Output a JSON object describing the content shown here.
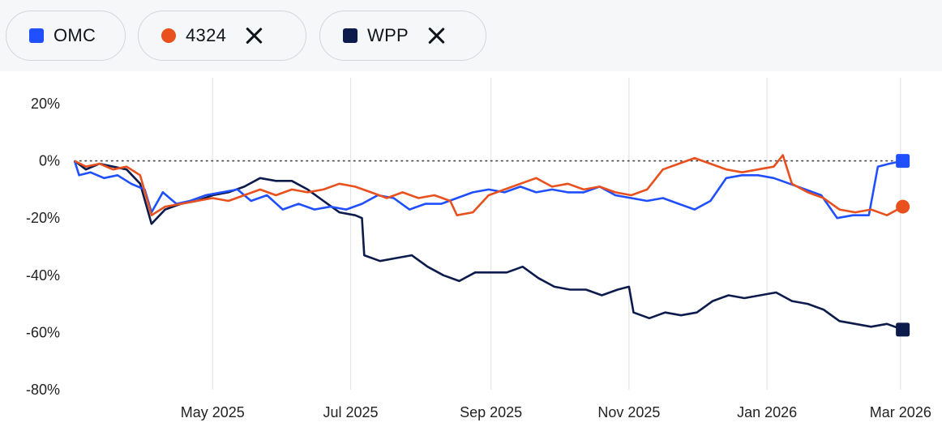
{
  "legend": {
    "items": [
      {
        "label": "OMC",
        "color": "#1f4fff",
        "marker": "square",
        "removable": false
      },
      {
        "label": "4324",
        "color": "#e8501e",
        "marker": "circle",
        "removable": true
      },
      {
        "label": "WPP",
        "color": "#0d1b4c",
        "marker": "square",
        "removable": true
      }
    ]
  },
  "chart_data": {
    "type": "line",
    "title": "",
    "xlabel": "",
    "ylabel": "",
    "ylim": [
      -80,
      20
    ],
    "y_ticks": [
      "20%",
      "0%",
      "-20%",
      "-40%",
      "-60%",
      "-80%"
    ],
    "y_tick_values": [
      20,
      0,
      -20,
      -40,
      -60,
      -80
    ],
    "x_range": [
      "2025-03-01",
      "2026-03-05"
    ],
    "x_ticks": [
      {
        "label": "May 2025",
        "date": "2025-05-01"
      },
      {
        "label": "Jul 2025",
        "date": "2025-07-01"
      },
      {
        "label": "Sep 2025",
        "date": "2025-09-01"
      },
      {
        "label": "Nov 2025",
        "date": "2025-11-01"
      },
      {
        "label": "Jan 2026",
        "date": "2026-01-01"
      },
      {
        "label": "Mar 2026",
        "date": "2026-03-01"
      }
    ],
    "reference_line": 0,
    "series": [
      {
        "name": "OMC",
        "color": "#1f4fff",
        "points": [
          [
            "2025-03-01",
            0
          ],
          [
            "2025-03-03",
            -5
          ],
          [
            "2025-03-08",
            -4
          ],
          [
            "2025-03-14",
            -6
          ],
          [
            "2025-03-20",
            -5
          ],
          [
            "2025-03-26",
            -8
          ],
          [
            "2025-04-01",
            -10
          ],
          [
            "2025-04-04",
            -18
          ],
          [
            "2025-04-09",
            -11
          ],
          [
            "2025-04-15",
            -15
          ],
          [
            "2025-04-21",
            -14
          ],
          [
            "2025-04-28",
            -12
          ],
          [
            "2025-05-05",
            -11
          ],
          [
            "2025-05-12",
            -10
          ],
          [
            "2025-05-18",
            -14
          ],
          [
            "2025-05-25",
            -12
          ],
          [
            "2025-06-01",
            -17
          ],
          [
            "2025-06-08",
            -15
          ],
          [
            "2025-06-15",
            -17
          ],
          [
            "2025-06-22",
            -16
          ],
          [
            "2025-06-29",
            -17
          ],
          [
            "2025-07-06",
            -15
          ],
          [
            "2025-07-13",
            -12
          ],
          [
            "2025-07-20",
            -13
          ],
          [
            "2025-07-27",
            -17
          ],
          [
            "2025-08-03",
            -15
          ],
          [
            "2025-08-10",
            -15
          ],
          [
            "2025-08-17",
            -13
          ],
          [
            "2025-08-24",
            -11
          ],
          [
            "2025-08-31",
            -10
          ],
          [
            "2025-09-07",
            -11
          ],
          [
            "2025-09-14",
            -9
          ],
          [
            "2025-09-21",
            -11
          ],
          [
            "2025-09-28",
            -10
          ],
          [
            "2025-10-05",
            -11
          ],
          [
            "2025-10-12",
            -11
          ],
          [
            "2025-10-19",
            -9
          ],
          [
            "2025-10-26",
            -12
          ],
          [
            "2025-11-02",
            -13
          ],
          [
            "2025-11-09",
            -14
          ],
          [
            "2025-11-16",
            -13
          ],
          [
            "2025-11-23",
            -15
          ],
          [
            "2025-11-30",
            -17
          ],
          [
            "2025-12-07",
            -14
          ],
          [
            "2025-12-14",
            -6
          ],
          [
            "2025-12-21",
            -5
          ],
          [
            "2025-12-28",
            -5
          ],
          [
            "2026-01-04",
            -6
          ],
          [
            "2026-01-11",
            -8
          ],
          [
            "2026-01-18",
            -10
          ],
          [
            "2026-01-25",
            -12
          ],
          [
            "2026-02-01",
            -20
          ],
          [
            "2026-02-08",
            -19
          ],
          [
            "2026-02-15",
            -19
          ],
          [
            "2026-02-19",
            -2
          ],
          [
            "2026-02-24",
            -1
          ],
          [
            "2026-03-02",
            0
          ]
        ]
      },
      {
        "name": "4324",
        "color": "#e8501e",
        "points": [
          [
            "2025-03-01",
            0
          ],
          [
            "2025-03-06",
            -2
          ],
          [
            "2025-03-12",
            -1
          ],
          [
            "2025-03-18",
            -3
          ],
          [
            "2025-03-24",
            -2
          ],
          [
            "2025-03-30",
            -5
          ],
          [
            "2025-04-04",
            -19
          ],
          [
            "2025-04-10",
            -16
          ],
          [
            "2025-04-17",
            -15
          ],
          [
            "2025-04-24",
            -14
          ],
          [
            "2025-05-01",
            -13
          ],
          [
            "2025-05-08",
            -14
          ],
          [
            "2025-05-15",
            -12
          ],
          [
            "2025-05-22",
            -10
          ],
          [
            "2025-05-29",
            -12
          ],
          [
            "2025-06-05",
            -10
          ],
          [
            "2025-06-12",
            -11
          ],
          [
            "2025-06-19",
            -10
          ],
          [
            "2025-06-26",
            -8
          ],
          [
            "2025-07-03",
            -9
          ],
          [
            "2025-07-10",
            -11
          ],
          [
            "2025-07-17",
            -13
          ],
          [
            "2025-07-24",
            -11
          ],
          [
            "2025-07-31",
            -13
          ],
          [
            "2025-08-07",
            -12
          ],
          [
            "2025-08-14",
            -14
          ],
          [
            "2025-08-17",
            -19
          ],
          [
            "2025-08-24",
            -18
          ],
          [
            "2025-08-31",
            -12
          ],
          [
            "2025-09-07",
            -10
          ],
          [
            "2025-09-14",
            -8
          ],
          [
            "2025-09-21",
            -6
          ],
          [
            "2025-09-28",
            -9
          ],
          [
            "2025-10-05",
            -8
          ],
          [
            "2025-10-12",
            -10
          ],
          [
            "2025-10-19",
            -9
          ],
          [
            "2025-10-26",
            -11
          ],
          [
            "2025-11-02",
            -12
          ],
          [
            "2025-11-09",
            -10
          ],
          [
            "2025-11-16",
            -3
          ],
          [
            "2025-11-23",
            -1
          ],
          [
            "2025-11-30",
            1
          ],
          [
            "2025-12-07",
            -1
          ],
          [
            "2025-12-14",
            -3
          ],
          [
            "2025-12-21",
            -4
          ],
          [
            "2025-12-28",
            -3
          ],
          [
            "2026-01-04",
            -2
          ],
          [
            "2026-01-08",
            2
          ],
          [
            "2026-01-12",
            -8
          ],
          [
            "2026-01-19",
            -11
          ],
          [
            "2026-01-26",
            -13
          ],
          [
            "2026-02-02",
            -17
          ],
          [
            "2026-02-09",
            -18
          ],
          [
            "2026-02-16",
            -17
          ],
          [
            "2026-02-23",
            -19
          ],
          [
            "2026-03-02",
            -16
          ]
        ]
      },
      {
        "name": "WPP",
        "color": "#0d1b4c",
        "points": [
          [
            "2025-03-01",
            0
          ],
          [
            "2025-03-06",
            -3
          ],
          [
            "2025-03-12",
            -1
          ],
          [
            "2025-03-18",
            -2
          ],
          [
            "2025-03-24",
            -3
          ],
          [
            "2025-03-30",
            -8
          ],
          [
            "2025-04-04",
            -22
          ],
          [
            "2025-04-10",
            -17
          ],
          [
            "2025-04-17",
            -15
          ],
          [
            "2025-04-24",
            -14
          ],
          [
            "2025-05-01",
            -12
          ],
          [
            "2025-05-08",
            -11
          ],
          [
            "2025-05-15",
            -9
          ],
          [
            "2025-05-22",
            -6
          ],
          [
            "2025-05-29",
            -7
          ],
          [
            "2025-06-05",
            -7
          ],
          [
            "2025-06-12",
            -10
          ],
          [
            "2025-06-19",
            -14
          ],
          [
            "2025-06-26",
            -18
          ],
          [
            "2025-07-03",
            -19
          ],
          [
            "2025-07-06",
            -20
          ],
          [
            "2025-07-07",
            -33
          ],
          [
            "2025-07-14",
            -35
          ],
          [
            "2025-07-21",
            -34
          ],
          [
            "2025-07-28",
            -33
          ],
          [
            "2025-08-04",
            -37
          ],
          [
            "2025-08-11",
            -40
          ],
          [
            "2025-08-18",
            -42
          ],
          [
            "2025-08-25",
            -39
          ],
          [
            "2025-09-01",
            -39
          ],
          [
            "2025-09-08",
            -39
          ],
          [
            "2025-09-15",
            -37
          ],
          [
            "2025-09-22",
            -41
          ],
          [
            "2025-09-29",
            -44
          ],
          [
            "2025-10-06",
            -45
          ],
          [
            "2025-10-13",
            -45
          ],
          [
            "2025-10-20",
            -47
          ],
          [
            "2025-10-27",
            -45
          ],
          [
            "2025-11-01",
            -44
          ],
          [
            "2025-11-03",
            -53
          ],
          [
            "2025-11-10",
            -55
          ],
          [
            "2025-11-17",
            -53
          ],
          [
            "2025-11-24",
            -54
          ],
          [
            "2025-12-01",
            -53
          ],
          [
            "2025-12-08",
            -49
          ],
          [
            "2025-12-15",
            -47
          ],
          [
            "2025-12-22",
            -48
          ],
          [
            "2025-12-29",
            -47
          ],
          [
            "2026-01-05",
            -46
          ],
          [
            "2026-01-12",
            -49
          ],
          [
            "2026-01-19",
            -50
          ],
          [
            "2026-01-26",
            -52
          ],
          [
            "2026-02-02",
            -56
          ],
          [
            "2026-02-09",
            -57
          ],
          [
            "2026-02-16",
            -58
          ],
          [
            "2026-02-23",
            -57
          ],
          [
            "2026-03-02",
            -59
          ]
        ]
      }
    ]
  }
}
